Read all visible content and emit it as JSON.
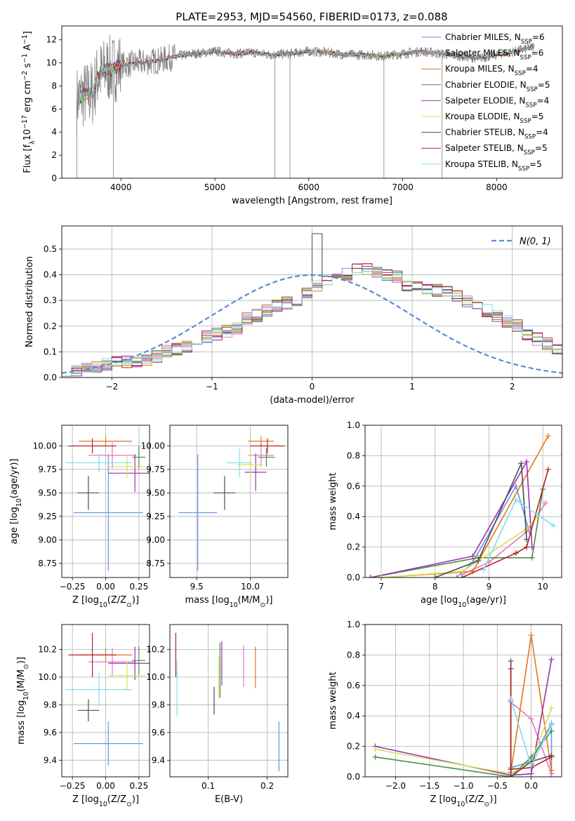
{
  "figure_title": "PLATE=2953, MJD=54560, FIBERID=0173, z=0.088",
  "models": [
    {
      "key": "chabrier_miles",
      "label": "Chabrier MILES, N",
      "sub": "SSP",
      "tail": "=6",
      "color": "#6495ed"
    },
    {
      "key": "salpeter_miles",
      "label": "Salpeter MILES, N",
      "sub": "SSP",
      "tail": "=6",
      "color": "#e377c2"
    },
    {
      "key": "kroupa_miles",
      "label": "Kroupa MILES, N",
      "sub": "SSP",
      "tail": "=4",
      "color": "#e6751a"
    },
    {
      "key": "chabrier_elodie",
      "label": "Chabrier ELODIE, N",
      "sub": "SSP",
      "tail": "=5",
      "color": "#4a8a4a"
    },
    {
      "key": "salpeter_elodie",
      "label": "Salpeter ELODIE, N",
      "sub": "SSP",
      "tail": "=4",
      "color": "#9b30b0"
    },
    {
      "key": "kroupa_elodie",
      "label": "Kroupa ELODIE, N",
      "sub": "SSP",
      "tail": "=5",
      "color": "#d4e157"
    },
    {
      "key": "chabrier_stelib",
      "label": "Chabrier STELIB, N",
      "sub": "SSP",
      "tail": "=4",
      "color": "#4d4d4d"
    },
    {
      "key": "salpeter_stelib",
      "label": "Salpeter STELIB, N",
      "sub": "SSP",
      "tail": "=5",
      "color": "#b22222"
    },
    {
      "key": "kroupa_stelib",
      "label": "Kroupa STELIB, N",
      "sub": "SSP",
      "tail": "=5",
      "color": "#80deea"
    }
  ],
  "chart_data": [
    {
      "id": "spectrum",
      "type": "line",
      "xlabel": "wavelength [Angstrom, rest frame]",
      "ylabel_parts": [
        "Flux [f",
        "λ",
        "10",
        "−17",
        " erg cm",
        "−2",
        " s",
        "−1",
        " A",
        "−1",
        "]"
      ],
      "xlim": [
        3370,
        8700
      ],
      "ylim": [
        0,
        13.2
      ],
      "xticks": [
        4000,
        5000,
        6000,
        7000,
        8000
      ],
      "yticks": [
        0,
        2,
        4,
        6,
        8,
        10,
        12
      ],
      "data_color": "#808080",
      "continuum": [
        [
          3530,
          6.8
        ],
        [
          3600,
          7.2
        ],
        [
          3700,
          7.4
        ],
        [
          3750,
          8.8
        ],
        [
          3850,
          9.5
        ],
        [
          3900,
          9.4
        ],
        [
          4000,
          9.8
        ],
        [
          4200,
          10.0
        ],
        [
          4400,
          10.2
        ],
        [
          4600,
          10.6
        ],
        [
          4800,
          10.8
        ],
        [
          4900,
          10.9
        ],
        [
          5000,
          11.0
        ],
        [
          5200,
          10.8
        ],
        [
          5400,
          10.9
        ],
        [
          5600,
          10.7
        ],
        [
          5800,
          10.8
        ],
        [
          6000,
          11.0
        ],
        [
          6200,
          10.9
        ],
        [
          6400,
          10.7
        ],
        [
          6600,
          10.7
        ],
        [
          6800,
          10.6
        ],
        [
          7000,
          10.8
        ],
        [
          7200,
          11.0
        ],
        [
          7400,
          10.8
        ],
        [
          7600,
          10.6
        ],
        [
          7800,
          10.4
        ],
        [
          8000,
          10.7
        ],
        [
          8200,
          11.0
        ],
        [
          8400,
          11.4
        ]
      ],
      "dips": [
        [
          3530,
          0
        ],
        [
          3920,
          0
        ],
        [
          5640,
          0
        ],
        [
          5800,
          0
        ],
        [
          6800,
          0
        ],
        [
          7420,
          0
        ]
      ]
    },
    {
      "id": "residuals",
      "type": "histogram",
      "xlabel": "(data-model)/error",
      "ylabel": "Normed distribution",
      "xlim": [
        -2.5,
        2.5
      ],
      "ylim": [
        0,
        0.59
      ],
      "xticks": [
        -2,
        -1,
        0,
        1,
        2
      ],
      "yticks": [
        0.0,
        0.1,
        0.2,
        0.3,
        0.4,
        0.5
      ],
      "legend_label": "N(0, 1)",
      "gaussian_color": "#5a8bd6",
      "bin_width": 0.1,
      "bin_start": -2.5,
      "base_profile": [
        0.03,
        0.03,
        0.04,
        0.04,
        0.05,
        0.06,
        0.06,
        0.06,
        0.07,
        0.08,
        0.1,
        0.11,
        0.12,
        0.14,
        0.16,
        0.17,
        0.18,
        0.19,
        0.23,
        0.24,
        0.26,
        0.28,
        0.29,
        0.3,
        0.33,
        0.36,
        0.37,
        0.38,
        0.4,
        0.42,
        0.42,
        0.41,
        0.4,
        0.39,
        0.36,
        0.36,
        0.35,
        0.34,
        0.33,
        0.32,
        0.3,
        0.28,
        0.26,
        0.24,
        0.22,
        0.2,
        0.17,
        0.15,
        0.13,
        0.11,
        0.1,
        0.09,
        0.08,
        0.08,
        0.07,
        0.06,
        0.05,
        0.05,
        0.04,
        0.04
      ]
    },
    {
      "id": "age_vs_Z",
      "type": "errorbar",
      "xlabel_parts": [
        "Z [log",
        "10",
        "(Z/Z",
        "⊙",
        ")]"
      ],
      "ylabel_parts": [
        "age  [log",
        "10",
        "(age/yr)]"
      ],
      "xlim": [
        -0.33,
        0.33
      ],
      "ylim": [
        8.6,
        10.22
      ],
      "xticks": [
        -0.25,
        0.0,
        0.25
      ],
      "xtick_labels": [
        "−0.25",
        "0.00",
        "0.25"
      ],
      "yticks": [
        8.75,
        9.0,
        9.25,
        9.5,
        9.75,
        10.0
      ],
      "yticks_labels": [
        "8.75",
        "9.00",
        "9.25",
        "9.50",
        "9.75",
        "10.00"
      ],
      "points": [
        {
          "m": 0,
          "x": 0.02,
          "y": 9.29,
          "xerr": 0.26,
          "yerr": 0.62
        },
        {
          "m": 1,
          "x": 0.05,
          "y": 9.9,
          "xerr": 0.18,
          "yerr": 0.14
        },
        {
          "m": 2,
          "x": 0.0,
          "y": 10.05,
          "xerr": 0.2,
          "yerr": 0.05
        },
        {
          "m": 3,
          "x": 0.25,
          "y": 9.88,
          "xerr": 0.05,
          "yerr": 0.12
        },
        {
          "m": 4,
          "x": 0.22,
          "y": 9.71,
          "xerr": 0.2,
          "yerr": 0.2
        },
        {
          "m": 5,
          "x": 0.16,
          "y": 9.78,
          "xerr": 0.14,
          "yerr": 0.12
        },
        {
          "m": 6,
          "x": -0.13,
          "y": 9.5,
          "xerr": 0.08,
          "yerr": 0.18
        },
        {
          "m": 7,
          "x": -0.1,
          "y": 10.0,
          "xerr": 0.18,
          "yerr": 0.08
        },
        {
          "m": 8,
          "x": -0.05,
          "y": 9.82,
          "xerr": 0.25,
          "yerr": 0.1
        }
      ]
    },
    {
      "id": "age_vs_mass",
      "type": "errorbar",
      "xlabel_parts": [
        "mass [log",
        "10",
        "(M/M",
        "⊙",
        ")]"
      ],
      "ylabel_parts": [],
      "xlim": [
        9.25,
        10.35
      ],
      "ylim": [
        8.6,
        10.22
      ],
      "xticks": [
        9.5,
        10.0
      ],
      "xtick_labels": [
        "9.5",
        "10.0"
      ],
      "yticks": [
        8.75,
        9.0,
        9.25,
        9.5,
        9.75,
        10.0
      ],
      "yticks_labels": [
        "8.75",
        "9.00",
        "9.25",
        "9.50",
        "9.75",
        "10.00"
      ],
      "points": [
        {
          "m": 0,
          "x": 9.51,
          "y": 9.29,
          "xerr": 0.18,
          "yerr": 0.62
        },
        {
          "m": 1,
          "x": 10.1,
          "y": 9.9,
          "xerr": 0.12,
          "yerr": 0.12
        },
        {
          "m": 2,
          "x": 10.1,
          "y": 10.05,
          "xerr": 0.12,
          "yerr": 0.05
        },
        {
          "m": 3,
          "x": 10.15,
          "y": 9.88,
          "xerr": 0.08,
          "yerr": 0.1
        },
        {
          "m": 4,
          "x": 10.05,
          "y": 9.72,
          "xerr": 0.1,
          "yerr": 0.2
        },
        {
          "m": 5,
          "x": 10.0,
          "y": 9.8,
          "xerr": 0.12,
          "yerr": 0.12
        },
        {
          "m": 6,
          "x": 9.76,
          "y": 9.5,
          "xerr": 0.1,
          "yerr": 0.18
        },
        {
          "m": 7,
          "x": 10.16,
          "y": 10.0,
          "xerr": 0.16,
          "yerr": 0.08
        },
        {
          "m": 8,
          "x": 9.9,
          "y": 9.82,
          "xerr": 0.12,
          "yerr": 0.15
        }
      ]
    },
    {
      "id": "weight_vs_age",
      "type": "line",
      "xlabel_parts": [
        "age  [log",
        "10",
        "(age/yr)]"
      ],
      "ylabel": "mass weight",
      "xlim": [
        6.7,
        10.35
      ],
      "ylim": [
        0,
        1.0
      ],
      "xticks": [
        7,
        8,
        9,
        10
      ],
      "xtick_labels": [
        "7",
        "8",
        "9",
        "10"
      ],
      "yticks": [
        0.0,
        0.2,
        0.4,
        0.6,
        0.8,
        1.0
      ],
      "series": [
        {
          "m": 0,
          "points": [
            [
              8.4,
              0.0
            ],
            [
              8.7,
              0.1
            ],
            [
              9.5,
              0.6
            ],
            [
              9.75,
              0.3
            ]
          ]
        },
        {
          "m": 1,
          "points": [
            [
              8.5,
              0.02
            ],
            [
              9.0,
              0.1
            ],
            [
              9.7,
              0.3
            ],
            [
              10.05,
              0.49
            ]
          ]
        },
        {
          "m": 2,
          "points": [
            [
              7.0,
              0.0
            ],
            [
              8.7,
              0.04
            ],
            [
              10.1,
              0.93
            ]
          ]
        },
        {
          "m": 3,
          "points": [
            [
              6.8,
              0.0
            ],
            [
              8.8,
              0.13
            ],
            [
              9.8,
              0.13
            ],
            [
              10.0,
              0.58
            ]
          ]
        },
        {
          "m": 4,
          "points": [
            [
              6.8,
              0.0
            ],
            [
              8.7,
              0.14
            ],
            [
              9.7,
              0.76
            ],
            [
              9.8,
              0.2
            ]
          ]
        },
        {
          "m": 5,
          "points": [
            [
              7.0,
              0.0
            ],
            [
              8.5,
              0.04
            ],
            [
              9.7,
              0.32
            ],
            [
              9.9,
              0.4
            ]
          ]
        },
        {
          "m": 6,
          "points": [
            [
              8.0,
              0.0
            ],
            [
              8.8,
              0.11
            ],
            [
              9.6,
              0.75
            ],
            [
              9.7,
              0.25
            ]
          ]
        },
        {
          "m": 7,
          "points": [
            [
              8.5,
              0.0
            ],
            [
              9.5,
              0.16
            ],
            [
              9.7,
              0.2
            ],
            [
              10.1,
              0.71
            ]
          ]
        },
        {
          "m": 8,
          "points": [
            [
              8.9,
              0.05
            ],
            [
              9.5,
              0.51
            ],
            [
              10.2,
              0.34
            ]
          ]
        }
      ]
    },
    {
      "id": "mass_vs_Z",
      "type": "errorbar",
      "xlabel_parts": [
        "Z [log",
        "10",
        "(Z/Z",
        "⊙",
        ")]"
      ],
      "ylabel_parts": [
        "mass [log",
        "10",
        "(M/M",
        "⊙",
        ")]"
      ],
      "xlim": [
        -0.33,
        0.33
      ],
      "ylim": [
        9.28,
        10.38
      ],
      "xticks": [
        -0.25,
        0.0,
        0.25
      ],
      "xtick_labels": [
        "−0.25",
        "0.00",
        "0.25"
      ],
      "yticks": [
        9.4,
        9.6,
        9.8,
        10.0,
        10.2
      ],
      "yticks_labels": [
        "9.4",
        "9.6",
        "9.8",
        "10.0",
        "10.2"
      ],
      "points": [
        {
          "m": 0,
          "x": 0.02,
          "y": 9.52,
          "xerr": 0.26,
          "yerr": 0.16
        },
        {
          "m": 1,
          "x": 0.05,
          "y": 10.11,
          "xerr": 0.18,
          "yerr": 0.1
        },
        {
          "m": 2,
          "x": 0.0,
          "y": 10.16,
          "xerr": 0.2,
          "yerr": 0.05
        },
        {
          "m": 3,
          "x": 0.25,
          "y": 10.12,
          "xerr": 0.05,
          "yerr": 0.1
        },
        {
          "m": 4,
          "x": 0.22,
          "y": 10.1,
          "xerr": 0.2,
          "yerr": 0.12
        },
        {
          "m": 5,
          "x": 0.16,
          "y": 10.01,
          "xerr": 0.14,
          "yerr": 0.1
        },
        {
          "m": 6,
          "x": -0.13,
          "y": 9.76,
          "xerr": 0.08,
          "yerr": 0.08
        },
        {
          "m": 7,
          "x": -0.1,
          "y": 10.16,
          "xerr": 0.18,
          "yerr": 0.16
        },
        {
          "m": 8,
          "x": -0.05,
          "y": 9.91,
          "xerr": 0.25,
          "yerr": 0.12
        }
      ]
    },
    {
      "id": "mass_vs_EBV",
      "type": "errorbar",
      "xlabel_parts": [
        "E(B-V)"
      ],
      "ylabel_parts": [],
      "xlim": [
        0.035,
        0.235
      ],
      "ylim": [
        9.28,
        10.38
      ],
      "xticks": [
        0.1,
        0.2
      ],
      "xtick_labels": [
        "0.1",
        "0.2"
      ],
      "yticks": [
        9.4,
        9.6,
        9.8,
        10.0,
        10.2
      ],
      "yticks_labels": [
        "9.4",
        "9.6",
        "9.8",
        "10.0",
        "10.2"
      ],
      "points": [
        {
          "m": 0,
          "x": 0.22,
          "y": 9.5,
          "xerr": 0.0,
          "yerr": 0.18
        },
        {
          "m": 1,
          "x": 0.16,
          "y": 10.08,
          "xerr": 0.0,
          "yerr": 0.15
        },
        {
          "m": 2,
          "x": 0.18,
          "y": 10.07,
          "xerr": 0.0,
          "yerr": 0.15
        },
        {
          "m": 3,
          "x": 0.12,
          "y": 10.05,
          "xerr": 0.0,
          "yerr": 0.2
        },
        {
          "m": 4,
          "x": 0.123,
          "y": 10.1,
          "xerr": 0.0,
          "yerr": 0.16
        },
        {
          "m": 5,
          "x": 0.118,
          "y": 10.0,
          "xerr": 0.0,
          "yerr": 0.15
        },
        {
          "m": 6,
          "x": 0.11,
          "y": 9.83,
          "xerr": 0.0,
          "yerr": 0.1
        },
        {
          "m": 7,
          "x": 0.045,
          "y": 10.16,
          "xerr": 0.0,
          "yerr": 0.16
        },
        {
          "m": 8,
          "x": 0.047,
          "y": 9.92,
          "xerr": 0.0,
          "yerr": 0.2
        }
      ]
    },
    {
      "id": "weight_vs_Z",
      "type": "line",
      "xlabel_parts": [
        "Z [log",
        "10",
        "(Z/Z",
        "⊙",
        ")]"
      ],
      "ylabel": "mass weight",
      "xlim": [
        -2.45,
        0.45
      ],
      "ylim": [
        0,
        1.0
      ],
      "xticks": [
        -2.0,
        -1.5,
        -1.0,
        -0.5,
        0.0
      ],
      "xtick_labels": [
        "−2.0",
        "−1.5",
        "−1.0",
        "−0.5",
        "0.0"
      ],
      "yticks": [
        0.0,
        0.2,
        0.4,
        0.6,
        0.8,
        1.0
      ],
      "series": [
        {
          "m": 0,
          "points": [
            [
              -0.3,
              0.5
            ],
            [
              -0.3,
              0.06
            ],
            [
              0.0,
              0.1
            ],
            [
              0.3,
              0.35
            ],
            [
              0.3,
              0.0
            ]
          ]
        },
        {
          "m": 1,
          "points": [
            [
              -0.3,
              0.49
            ],
            [
              0.0,
              0.38
            ],
            [
              0.3,
              0.02
            ]
          ]
        },
        {
          "m": 2,
          "points": [
            [
              -0.3,
              0.03
            ],
            [
              0.0,
              0.93
            ],
            [
              0.3,
              0.04
            ]
          ]
        },
        {
          "m": 3,
          "points": [
            [
              -2.3,
              0.13
            ],
            [
              -0.3,
              0.0
            ],
            [
              0.0,
              0.13
            ],
            [
              0.3,
              0.3
            ]
          ]
        },
        {
          "m": 4,
          "points": [
            [
              -2.3,
              0.2
            ],
            [
              -0.3,
              0.01
            ],
            [
              0.0,
              0.02
            ],
            [
              0.3,
              0.77
            ]
          ]
        },
        {
          "m": 5,
          "points": [
            [
              -2.3,
              0.18
            ],
            [
              -0.3,
              0.02
            ],
            [
              0.0,
              0.1
            ],
            [
              0.3,
              0.45
            ]
          ]
        },
        {
          "m": 6,
          "points": [
            [
              -0.3,
              0.76
            ],
            [
              -0.3,
              0.0
            ],
            [
              0.0,
              0.1
            ],
            [
              0.3,
              0.14
            ]
          ]
        },
        {
          "m": 7,
          "points": [
            [
              -0.3,
              0.71
            ],
            [
              -0.3,
              0.05
            ],
            [
              0.0,
              0.06
            ],
            [
              0.3,
              0.13
            ]
          ]
        },
        {
          "m": 8,
          "points": [
            [
              -0.3,
              0.51
            ],
            [
              0.0,
              0.07
            ],
            [
              0.3,
              0.34
            ]
          ]
        }
      ]
    }
  ]
}
